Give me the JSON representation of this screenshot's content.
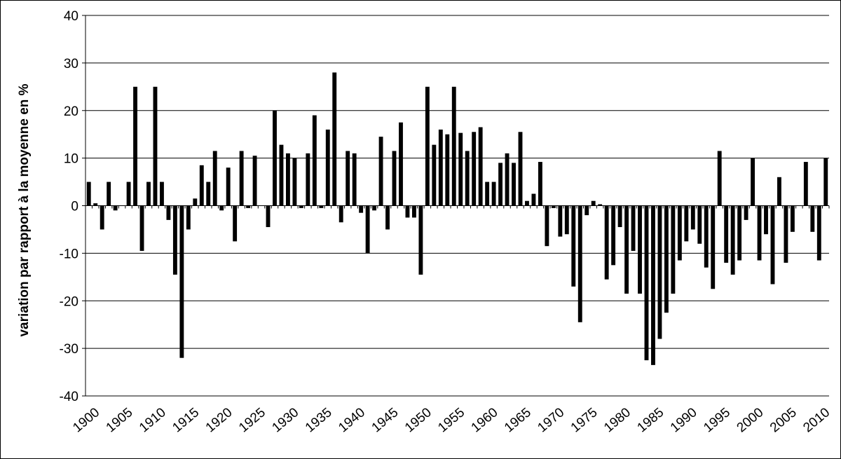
{
  "chart_data": {
    "type": "bar",
    "title": "",
    "xlabel": "",
    "ylabel": "variation par rapport à la moyenne en %",
    "ylim": [
      -40,
      40
    ],
    "yticks": [
      40,
      30,
      20,
      10,
      0,
      -10,
      -20,
      -30,
      -40
    ],
    "xtick_labels": [
      "1900",
      "1905",
      "1910",
      "1915",
      "1920",
      "1925",
      "1930",
      "1935",
      "1940",
      "1945",
      "1950",
      "1955",
      "1960",
      "1965",
      "1970",
      "1975",
      "1980",
      "1985",
      "1990",
      "1995",
      "2000",
      "2005",
      "2010"
    ],
    "grid": true,
    "legend": "none",
    "bar_color": "#000000",
    "years": [
      1900,
      1901,
      1902,
      1903,
      1904,
      1905,
      1906,
      1907,
      1908,
      1909,
      1910,
      1911,
      1912,
      1913,
      1914,
      1915,
      1916,
      1917,
      1918,
      1919,
      1920,
      1921,
      1922,
      1923,
      1924,
      1925,
      1926,
      1927,
      1928,
      1929,
      1930,
      1931,
      1932,
      1933,
      1934,
      1935,
      1936,
      1937,
      1938,
      1939,
      1940,
      1941,
      1942,
      1943,
      1944,
      1945,
      1946,
      1947,
      1948,
      1949,
      1950,
      1951,
      1952,
      1953,
      1954,
      1955,
      1956,
      1957,
      1958,
      1959,
      1960,
      1961,
      1962,
      1963,
      1964,
      1965,
      1966,
      1967,
      1968,
      1969,
      1970,
      1971,
      1972,
      1973,
      1974,
      1975,
      1976,
      1977,
      1978,
      1979,
      1980,
      1981,
      1982,
      1983,
      1984,
      1985,
      1986,
      1987,
      1988,
      1989,
      1990,
      1991,
      1992,
      1993,
      1994,
      1995,
      1996,
      1997,
      1998,
      1999,
      2000,
      2001,
      2002,
      2003,
      2004,
      2005,
      2006,
      2007,
      2008,
      2009,
      2010,
      2011
    ],
    "values": [
      5,
      0.5,
      -5,
      5,
      -1,
      0,
      5,
      25,
      -9.5,
      5,
      25,
      5,
      -3,
      -14.5,
      -32,
      -5,
      1.5,
      8.5,
      5,
      11.5,
      -1,
      8,
      -7.5,
      11.5,
      -0.5,
      10.5,
      0,
      -4.5,
      20,
      12.8,
      11,
      10,
      -0.5,
      11,
      19,
      -0.5,
      16,
      28,
      -3.5,
      11.5,
      11,
      -1.5,
      -10,
      -1,
      14.5,
      -5,
      11.5,
      17.5,
      -2.5,
      -2.5,
      -14.5,
      25,
      12.8,
      16,
      15,
      25,
      15.3,
      11.5,
      15.5,
      16.5,
      5,
      5,
      9,
      11,
      9,
      15.5,
      1,
      2.5,
      9.2,
      -8.5,
      -0.5,
      -6.5,
      -6,
      -17,
      -24.5,
      -2,
      1,
      0.3,
      -15.5,
      -12.5,
      -4.5,
      -18.5,
      -9.5,
      -18.5,
      -32.5,
      -33.5,
      -28,
      -22.5,
      -18.5,
      -11.5,
      -7.5,
      -5,
      -8,
      -13,
      -17.5,
      11.5,
      -12,
      -14.5,
      -11.5,
      -3,
      10,
      -11.5,
      -6,
      -16.5,
      6,
      -12,
      -5.5,
      0,
      9.2,
      -5.5,
      -11.5,
      10
    ]
  }
}
